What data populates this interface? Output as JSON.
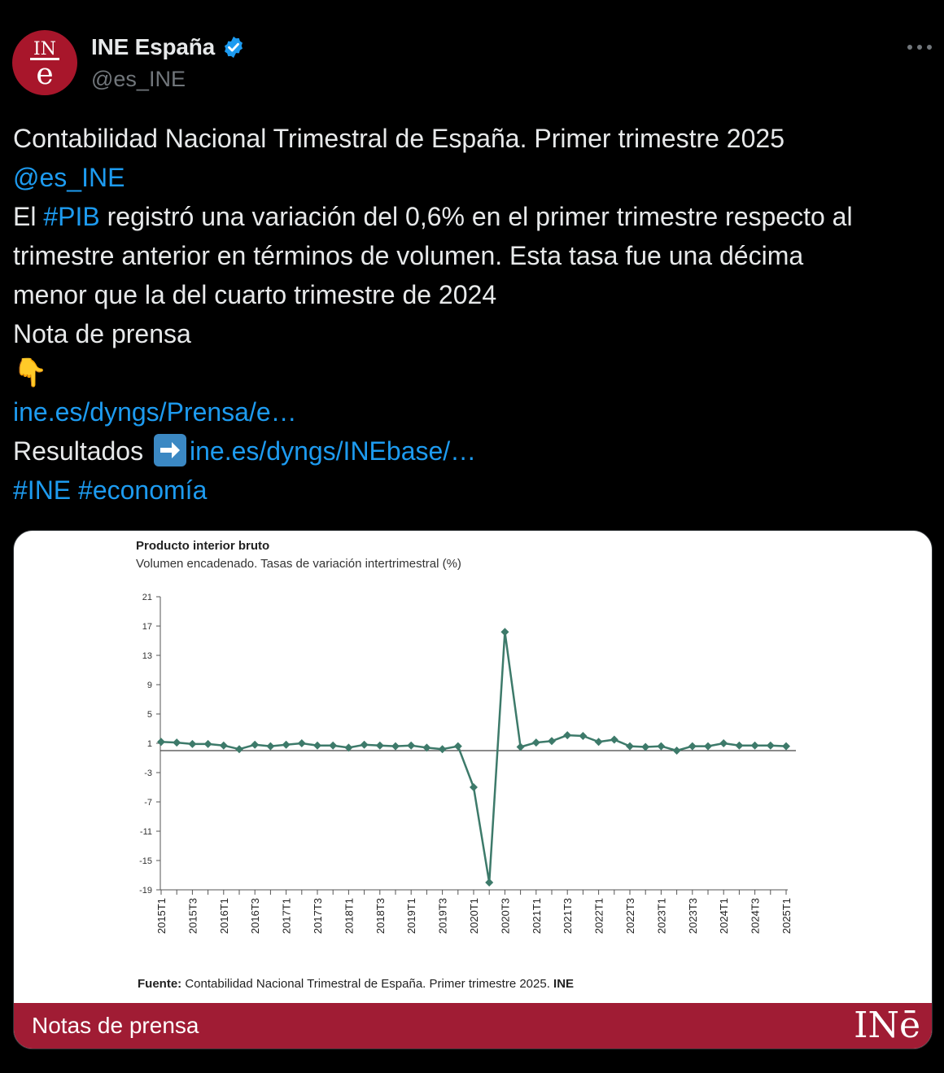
{
  "account": {
    "display_name": "INE España",
    "handle": "@es_INE",
    "avatar_text_top": "IN",
    "avatar_text_bottom": "e"
  },
  "tweet": {
    "line1": "Contabilidad Nacional Trimestral de España. Primer trimestre 2025",
    "mention": "@es_INE",
    "line3_pre": "El ",
    "hashtag_pib": "#PIB",
    "line3_post": " registró una variación del 0,6% en el primer trimestre respecto al",
    "line4": "trimestre anterior en términos de volumen. Esta tasa fue una décima",
    "line5": "menor que la del cuarto trimestre de 2024",
    "line6": "Nota de prensa",
    "emoji_down": "👇",
    "link1": "ine.es/dyngs/Prensa/e…",
    "results_label": "Resultados",
    "link2": "ine.es/dyngs/INEbase/…",
    "hashtag_ine": "#INE",
    "hashtag_economia": "#economía"
  },
  "media": {
    "source_prefix": "Fuente:",
    "source_text": " Contabilidad Nacional Trimestral de España. Primer trimestre 2025. ",
    "source_suffix": "INE",
    "banner_label": "Notas de prensa",
    "banner_logo": "INē"
  },
  "colors": {
    "background": "#000000",
    "text": "#e7e9ea",
    "muted": "#71767b",
    "link": "#1d9bf0",
    "ine_red": "#a01c34",
    "series": "#3d7a6a"
  },
  "chart_data": {
    "type": "line",
    "title": "Producto interior bruto",
    "subtitle": "Volumen encadenado. Tasas de variación intertrimestral (%)",
    "ylim": [
      -19,
      21
    ],
    "yticks": [
      21,
      17,
      13,
      9,
      5,
      1,
      -3,
      -7,
      -11,
      -15,
      -19
    ],
    "x": [
      "2015T1",
      "2015T2",
      "2015T3",
      "2015T4",
      "2016T1",
      "2016T2",
      "2016T3",
      "2016T4",
      "2017T1",
      "2017T2",
      "2017T3",
      "2017T4",
      "2018T1",
      "2018T2",
      "2018T3",
      "2018T4",
      "2019T1",
      "2019T2",
      "2019T3",
      "2019T4",
      "2020T1",
      "2020T2",
      "2020T3",
      "2020T4",
      "2021T1",
      "2021T2",
      "2021T3",
      "2021T4",
      "2022T1",
      "2022T2",
      "2022T3",
      "2022T4",
      "2023T1",
      "2023T2",
      "2023T3",
      "2023T4",
      "2024T1",
      "2024T2",
      "2024T3",
      "2024T4",
      "2025T1"
    ],
    "xtick_labels": [
      "2015T1",
      "2015T3",
      "2016T1",
      "2016T3",
      "2017T1",
      "2017T3",
      "2018T1",
      "2018T3",
      "2019T1",
      "2019T3",
      "2020T1",
      "2020T3",
      "2021T1",
      "2021T3",
      "2022T1",
      "2022T3",
      "2023T1",
      "2023T3",
      "2024T1",
      "2024T3",
      "2025T1"
    ],
    "series": [
      {
        "values": [
          1.2,
          1.1,
          0.9,
          0.9,
          0.7,
          0.2,
          0.8,
          0.6,
          0.8,
          1.0,
          0.7,
          0.7,
          0.4,
          0.8,
          0.7,
          0.6,
          0.7,
          0.4,
          0.2,
          0.6,
          -5.0,
          -18.0,
          16.2,
          0.5,
          1.1,
          1.3,
          2.1,
          2.0,
          1.2,
          1.5,
          0.6,
          0.5,
          0.6,
          0.0,
          0.6,
          0.6,
          1.0,
          0.7,
          0.7,
          0.7,
          0.6
        ]
      }
    ],
    "zero_line": 0,
    "grid": false,
    "legend": "none"
  }
}
